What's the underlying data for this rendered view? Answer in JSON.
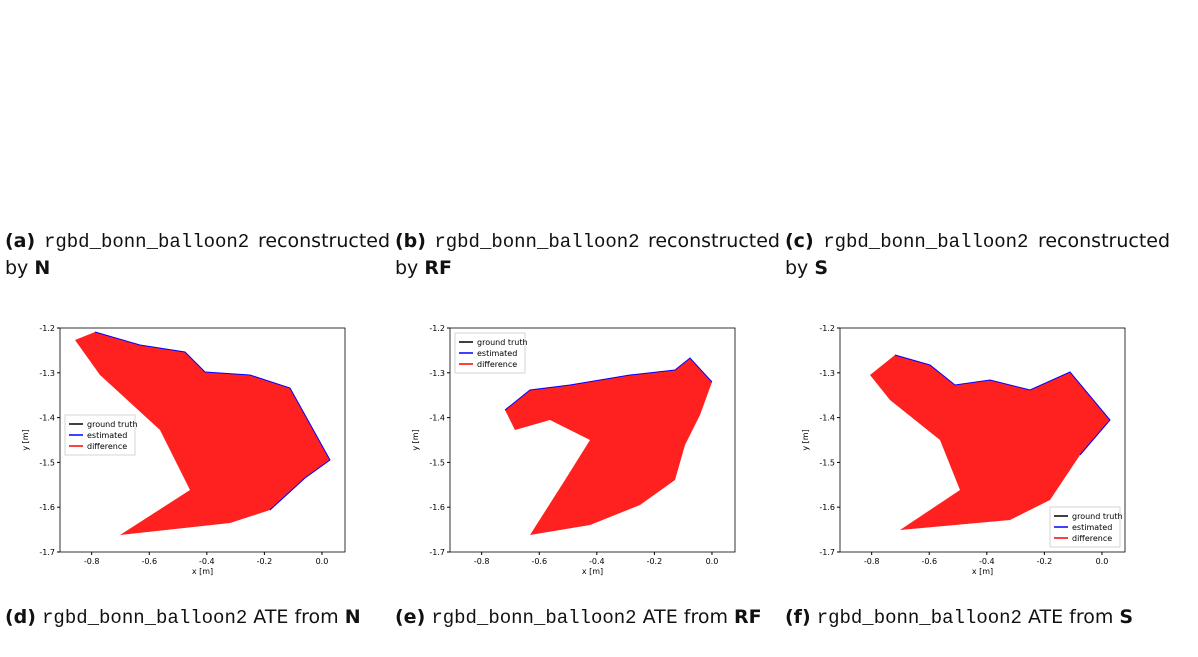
{
  "reconstructions": [
    {
      "label": "(a)",
      "dataset": "rgbd_bonn_balloon2",
      "text": "reconstructed by",
      "method": "N"
    },
    {
      "label": "(b)",
      "dataset": "rgbd_bonn_balloon2",
      "text": "reconstructed by",
      "method": "RF"
    },
    {
      "label": "(c)",
      "dataset": "rgbd_bonn_balloon2",
      "text": "reconstructed by",
      "method": "S"
    }
  ],
  "ate_plots": [
    {
      "caption": {
        "label": "(d)",
        "dataset": "rgbd_bonn_balloon2",
        "text": "ATE from",
        "method": "N"
      },
      "xlabel": "x [m]",
      "ylabel": "y [m]",
      "xlim": [
        -0.91,
        0.08
      ],
      "ylim": [
        -1.7,
        -1.2
      ],
      "xticks": [
        -0.8,
        -0.6,
        -0.4,
        -0.2,
        {
          "value": 0,
          "label": "0.0"
        }
      ],
      "yticks": [
        -1.2,
        -1.3,
        -1.4,
        -1.5,
        -1.6,
        -1.7
      ],
      "legend_position": "center left",
      "legend": [
        {
          "name": "ground truth",
          "color": "#000000"
        },
        {
          "name": "estimated",
          "color": "#0000ff"
        },
        {
          "name": "difference",
          "color": "#ff0000"
        }
      ]
    },
    {
      "caption": {
        "label": "(e)",
        "dataset": "rgbd_bonn_balloon2",
        "text": "ATE from",
        "method": "RF"
      },
      "xlabel": "x [m]",
      "ylabel": "y [m]",
      "xlim": [
        -0.91,
        0.08
      ],
      "ylim": [
        -1.7,
        -1.2
      ],
      "xticks": [
        -0.8,
        -0.6,
        -0.4,
        -0.2,
        {
          "value": 0,
          "label": "0.0"
        }
      ],
      "yticks": [
        -1.2,
        -1.3,
        -1.4,
        -1.5,
        -1.6,
        -1.7
      ],
      "legend_position": "upper left",
      "legend": [
        {
          "name": "ground truth",
          "color": "#000000"
        },
        {
          "name": "estimated",
          "color": "#0000ff"
        },
        {
          "name": "difference",
          "color": "#ff0000"
        }
      ]
    },
    {
      "caption": {
        "label": "(f)",
        "dataset": "rgbd_bonn_balloon2",
        "text": "ATE from",
        "method": "S"
      },
      "xlabel": "x [m]",
      "ylabel": "y [m]",
      "xlim": [
        -0.91,
        0.08
      ],
      "ylim": [
        -1.7,
        -1.2
      ],
      "xticks": [
        -0.8,
        -0.6,
        -0.4,
        -0.2,
        {
          "value": 0,
          "label": "0.0"
        }
      ],
      "yticks": [
        -1.2,
        -1.3,
        -1.4,
        -1.5,
        -1.6,
        -1.7
      ],
      "legend_position": "lower right",
      "legend": [
        {
          "name": "ground truth",
          "color": "#000000"
        },
        {
          "name": "estimated",
          "color": "#0000ff"
        },
        {
          "name": "difference",
          "color": "#ff0000"
        }
      ]
    }
  ]
}
